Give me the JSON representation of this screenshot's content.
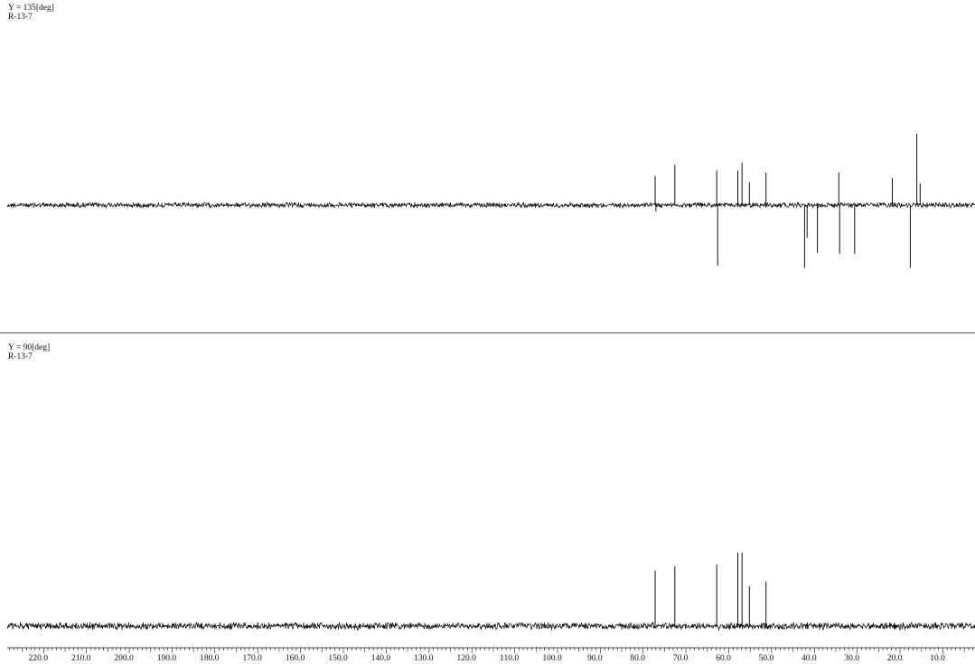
{
  "colors": {
    "trace": "#111111",
    "divider": "#555555",
    "background": "#ffffff"
  },
  "panels": [
    {
      "angle_label": "Y = 135[deg]",
      "sample": "R-13-7"
    },
    {
      "angle_label": "Y = 90[deg]",
      "sample": "R-13-7"
    }
  ],
  "chart_data": [
    {
      "type": "line",
      "title": "Y = 135[deg]",
      "subtitle": "R-13-7",
      "xlabel": "",
      "ylabel": "",
      "xlim": [
        228.5,
        2.5
      ],
      "x_reversed": true,
      "grid": false,
      "peaks": [
        {
          "x": 77.2,
          "y": 0.27
        },
        {
          "x": 77.0,
          "y": -0.06
        },
        {
          "x": 72.6,
          "y": 0.37
        },
        {
          "x": 62.8,
          "y": 0.32
        },
        {
          "x": 62.6,
          "y": -0.56
        },
        {
          "x": 57.9,
          "y": 0.32
        },
        {
          "x": 56.9,
          "y": 0.39
        },
        {
          "x": 55.2,
          "y": 0.21
        },
        {
          "x": 51.3,
          "y": 0.3
        },
        {
          "x": 42.3,
          "y": -0.58
        },
        {
          "x": 41.7,
          "y": -0.3
        },
        {
          "x": 39.3,
          "y": -0.44
        },
        {
          "x": 34.3,
          "y": 0.3
        },
        {
          "x": 34.1,
          "y": -0.45
        },
        {
          "x": 30.6,
          "y": -0.45
        },
        {
          "x": 21.8,
          "y": 0.25
        },
        {
          "x": 17.6,
          "y": -0.58
        },
        {
          "x": 16.1,
          "y": 0.66
        },
        {
          "x": 15.3,
          "y": 0.2
        }
      ]
    },
    {
      "type": "line",
      "title": "Y = 90[deg]",
      "subtitle": "R-13-7",
      "xlabel": "",
      "ylabel": "",
      "xlim": [
        228.5,
        2.5
      ],
      "x_reversed": true,
      "grid": false,
      "x_ticks": [
        220.0,
        210.0,
        200.0,
        190.0,
        180.0,
        170.0,
        160.0,
        150.0,
        140.0,
        130.0,
        120.0,
        110.0,
        100.0,
        90.0,
        80.0,
        70.0,
        60.0,
        50.0,
        40.0,
        30.0,
        20.0,
        10.0
      ],
      "x_tick_labels": [
        "220.0",
        "210.0",
        "200.0",
        "190.0",
        "180.0",
        "170.0",
        "160.0",
        "150.0",
        "140.0",
        "130.0",
        "120.0",
        "110.0",
        "100.0",
        "90.0",
        "80.0",
        "70.0",
        "60.0",
        "50.0",
        "40.0",
        "30.0",
        "20.0",
        "10.0"
      ],
      "peaks": [
        {
          "x": 77.2,
          "y": 0.56
        },
        {
          "x": 72.6,
          "y": 0.6
        },
        {
          "x": 62.8,
          "y": 0.62
        },
        {
          "x": 57.9,
          "y": 0.74
        },
        {
          "x": 56.9,
          "y": 0.74
        },
        {
          "x": 55.2,
          "y": 0.4
        },
        {
          "x": 51.3,
          "y": 0.45
        }
      ]
    }
  ]
}
